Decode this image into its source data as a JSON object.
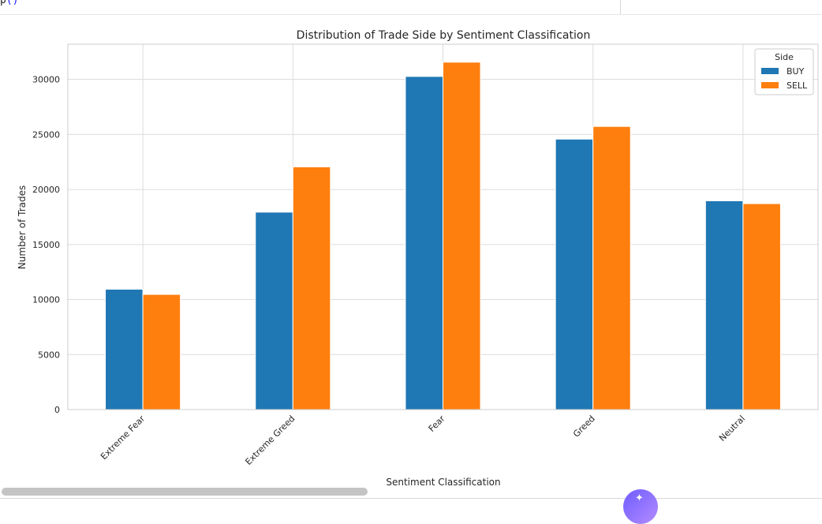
{
  "notebook": {
    "code_fragment_text": "p",
    "code_fragment_paren": "()"
  },
  "icons": {
    "assistant": "sparkle-icon"
  },
  "chart_data": {
    "type": "bar",
    "title": "Distribution of Trade Side by Sentiment Classification",
    "xlabel": "Sentiment Classification",
    "ylabel": "Number of Trades",
    "categories": [
      "Extreme Fear",
      "Extreme Greed",
      "Fear",
      "Greed",
      "Neutral"
    ],
    "series": [
      {
        "name": "BUY",
        "color": "#1f77b4",
        "values": [
          10935,
          17940,
          30270,
          24576,
          18969
        ]
      },
      {
        "name": "SELL",
        "color": "#ff7f0e",
        "values": [
          10465,
          22054,
          31567,
          25726,
          18714
        ]
      }
    ],
    "ylim": [
      0,
      33200
    ],
    "yticks": [
      0,
      5000,
      10000,
      15000,
      20000,
      25000,
      30000
    ],
    "grid": true,
    "legend_title": "Side",
    "legend_position": "top-right"
  }
}
